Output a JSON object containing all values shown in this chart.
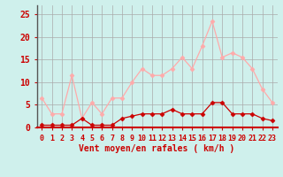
{
  "hours": [
    0,
    1,
    2,
    3,
    4,
    5,
    6,
    7,
    8,
    9,
    10,
    11,
    12,
    13,
    14,
    15,
    16,
    17,
    18,
    19,
    20,
    21,
    22,
    23
  ],
  "wind_avg": [
    0.5,
    0.5,
    0.5,
    0.5,
    2,
    0.5,
    0.5,
    0.5,
    2,
    2.5,
    3,
    3,
    3,
    4,
    3,
    3,
    3,
    5.5,
    5.5,
    3,
    3,
    3,
    2,
    1.5
  ],
  "wind_gust": [
    6.5,
    3,
    3,
    11.5,
    2,
    5.5,
    3,
    6.5,
    6.5,
    10,
    13,
    11.5,
    11.5,
    13,
    15.5,
    13,
    18,
    23.5,
    15.5,
    16.5,
    15.5,
    13,
    8.5,
    5.5
  ],
  "bg_color": "#cff0ec",
  "grid_color": "#aaaaaa",
  "line_color_avg": "#cc0000",
  "line_color_gust": "#ffaaaa",
  "xlabel": "Vent moyen/en rafales ( km/h )",
  "ylim": [
    0,
    27
  ],
  "yticks": [
    0,
    5,
    10,
    15,
    20,
    25
  ],
  "tick_color": "#cc0000",
  "label_fontsize": 7,
  "tick_fontsize": 6
}
